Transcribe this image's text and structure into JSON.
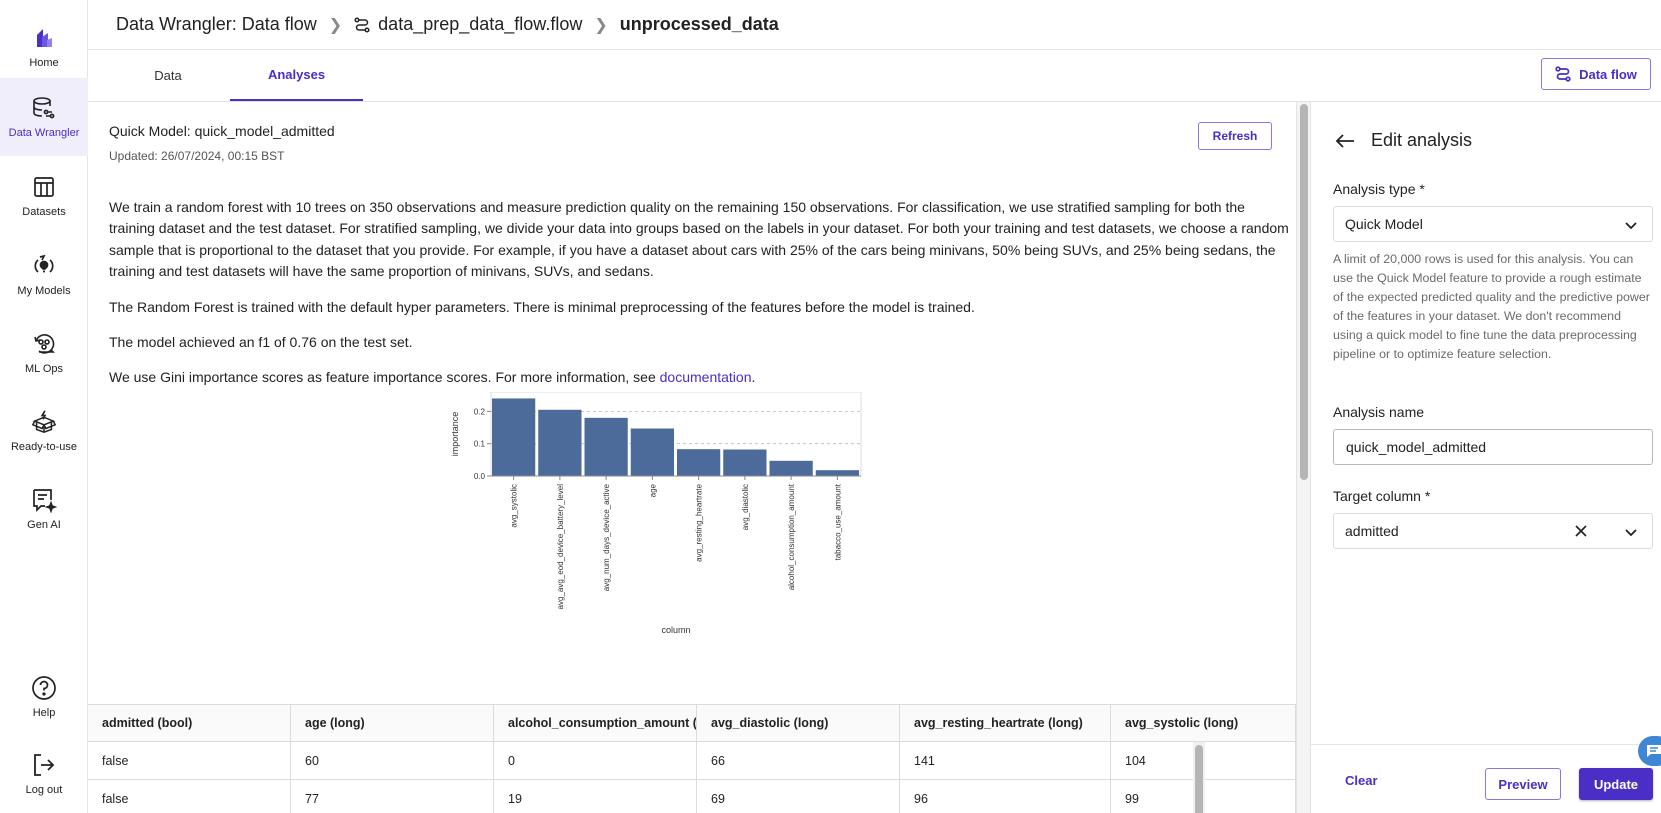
{
  "nav": {
    "items": [
      {
        "label": "Home",
        "icon": "home-logo-icon"
      },
      {
        "label": "Data Wrangler",
        "icon": "data-wrangler-icon",
        "active": true
      },
      {
        "label": "Datasets",
        "icon": "datasets-icon"
      },
      {
        "label": "My Models",
        "icon": "my-models-icon"
      },
      {
        "label": "ML Ops",
        "icon": "ml-ops-icon"
      },
      {
        "label": "Ready-to-use",
        "icon": "ready-to-use-icon"
      },
      {
        "label": "Gen AI",
        "icon": "gen-ai-icon"
      }
    ],
    "bottom": [
      {
        "label": "Help",
        "icon": "help-icon"
      },
      {
        "label": "Log out",
        "icon": "logout-icon"
      }
    ]
  },
  "header": {
    "breadcrumbs": [
      "Data Wrangler: Data flow",
      "data_prep_data_flow.flow",
      "unprocessed_data"
    ]
  },
  "tabs": [
    {
      "label": "Data",
      "active": false
    },
    {
      "label": "Analyses",
      "active": true
    }
  ],
  "toolbar": {
    "dataflow_label": "Data flow"
  },
  "analysis": {
    "title": "Quick Model: quick_model_admitted",
    "updated": "Updated: 26/07/2024, 00:15 BST",
    "refresh_label": "Refresh",
    "paragraphs": [
      "We train a random forest with 10 trees on 350 observations and measure prediction quality on the remaining 150 observations. For classification, we use stratified sampling for both the training dataset and the test dataset. For stratified sampling, we divide your data into groups based on the labels in your dataset. For both your training and test datasets, we choose a random sample that is proportional to the dataset that you provide. For example, if you have a dataset about cars with 25% of the cars being minivans, 50% being SUVs, and 25% being sedans, the training and test datasets will have the same proportion of minivans, SUVs, and sedans.",
      "The Random Forest is trained with the default hyper parameters. There is minimal preprocessing of the features before the model is trained.",
      "The model achieved an f1 of 0.76 on the test set."
    ],
    "gini_text": "We use Gini importance scores as feature importance scores. For more information, see ",
    "doc_link": "documentation",
    "gini_suffix": "."
  },
  "chart_data": {
    "type": "bar",
    "title": "",
    "xlabel": "column",
    "ylabel": "importance",
    "categories": [
      "avg_systolic",
      "avg_avg_eod_device_battery_level",
      "avg_num_days_device_active",
      "age",
      "avg_resting_heartrate",
      "avg_diastolic",
      "alcohol_consumption_amount",
      "tabacco_use_amount"
    ],
    "values": [
      0.24,
      0.205,
      0.18,
      0.147,
      0.083,
      0.082,
      0.047,
      0.018
    ],
    "yticks": [
      "0.0",
      "0.1",
      "0.2"
    ],
    "ylim": [
      0,
      0.26
    ],
    "grid": true,
    "bar_color": "#4c6b9a"
  },
  "table": {
    "columns": [
      "admitted (bool)",
      "age (long)",
      "alcohol_consumption_amount (long)",
      "avg_diastolic (long)",
      "avg_resting_heartrate (long)",
      "avg_systolic (long)"
    ],
    "rows": [
      [
        "false",
        "60",
        "0",
        "66",
        "141",
        "104"
      ],
      [
        "false",
        "77",
        "19",
        "69",
        "96",
        "99"
      ]
    ]
  },
  "panel": {
    "title": "Edit analysis",
    "analysis_type_label": "Analysis type *",
    "analysis_type_value": "Quick Model",
    "hint": "A limit of 20,000 rows is used for this analysis. You can use the Quick Model feature to provide a rough estimate of the expected predicted quality and the predictive power of the features in your dataset. We don't recommend using a quick model to fine tune the data preprocessing pipeline or to optimize feature selection.",
    "analysis_name_label": "Analysis name",
    "analysis_name_value": "quick_model_admitted",
    "target_column_label": "Target column *",
    "target_column_value": "admitted",
    "clear_label": "Clear",
    "preview_label": "Preview",
    "update_label": "Update"
  },
  "colors": {
    "accent": "#4a2ec5",
    "accent_border": "#8b78e0",
    "active_nav_bg": "#efeefa",
    "bar": "#4c6b9a"
  }
}
